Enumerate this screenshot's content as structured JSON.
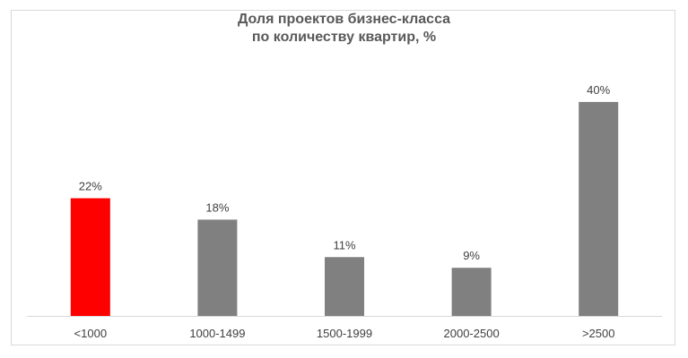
{
  "chart_data": {
    "type": "bar",
    "title_lines": [
      "Доля проектов бизнес-класса",
      "по количеству квартир, %"
    ],
    "categories": [
      "<1000",
      "1000-1499",
      "1500-1999",
      "2000-2500",
      ">2500"
    ],
    "values": [
      22,
      18,
      11,
      9,
      40
    ],
    "value_labels": [
      "22%",
      "18%",
      "11%",
      "9%",
      "40%"
    ],
    "unit": "%",
    "colors": [
      "#ff0000",
      "#808080",
      "#808080",
      "#808080",
      "#808080"
    ],
    "axis_color": "#d9d9d9",
    "ylim": [
      0,
      44
    ],
    "grid": false,
    "legend": "none"
  }
}
